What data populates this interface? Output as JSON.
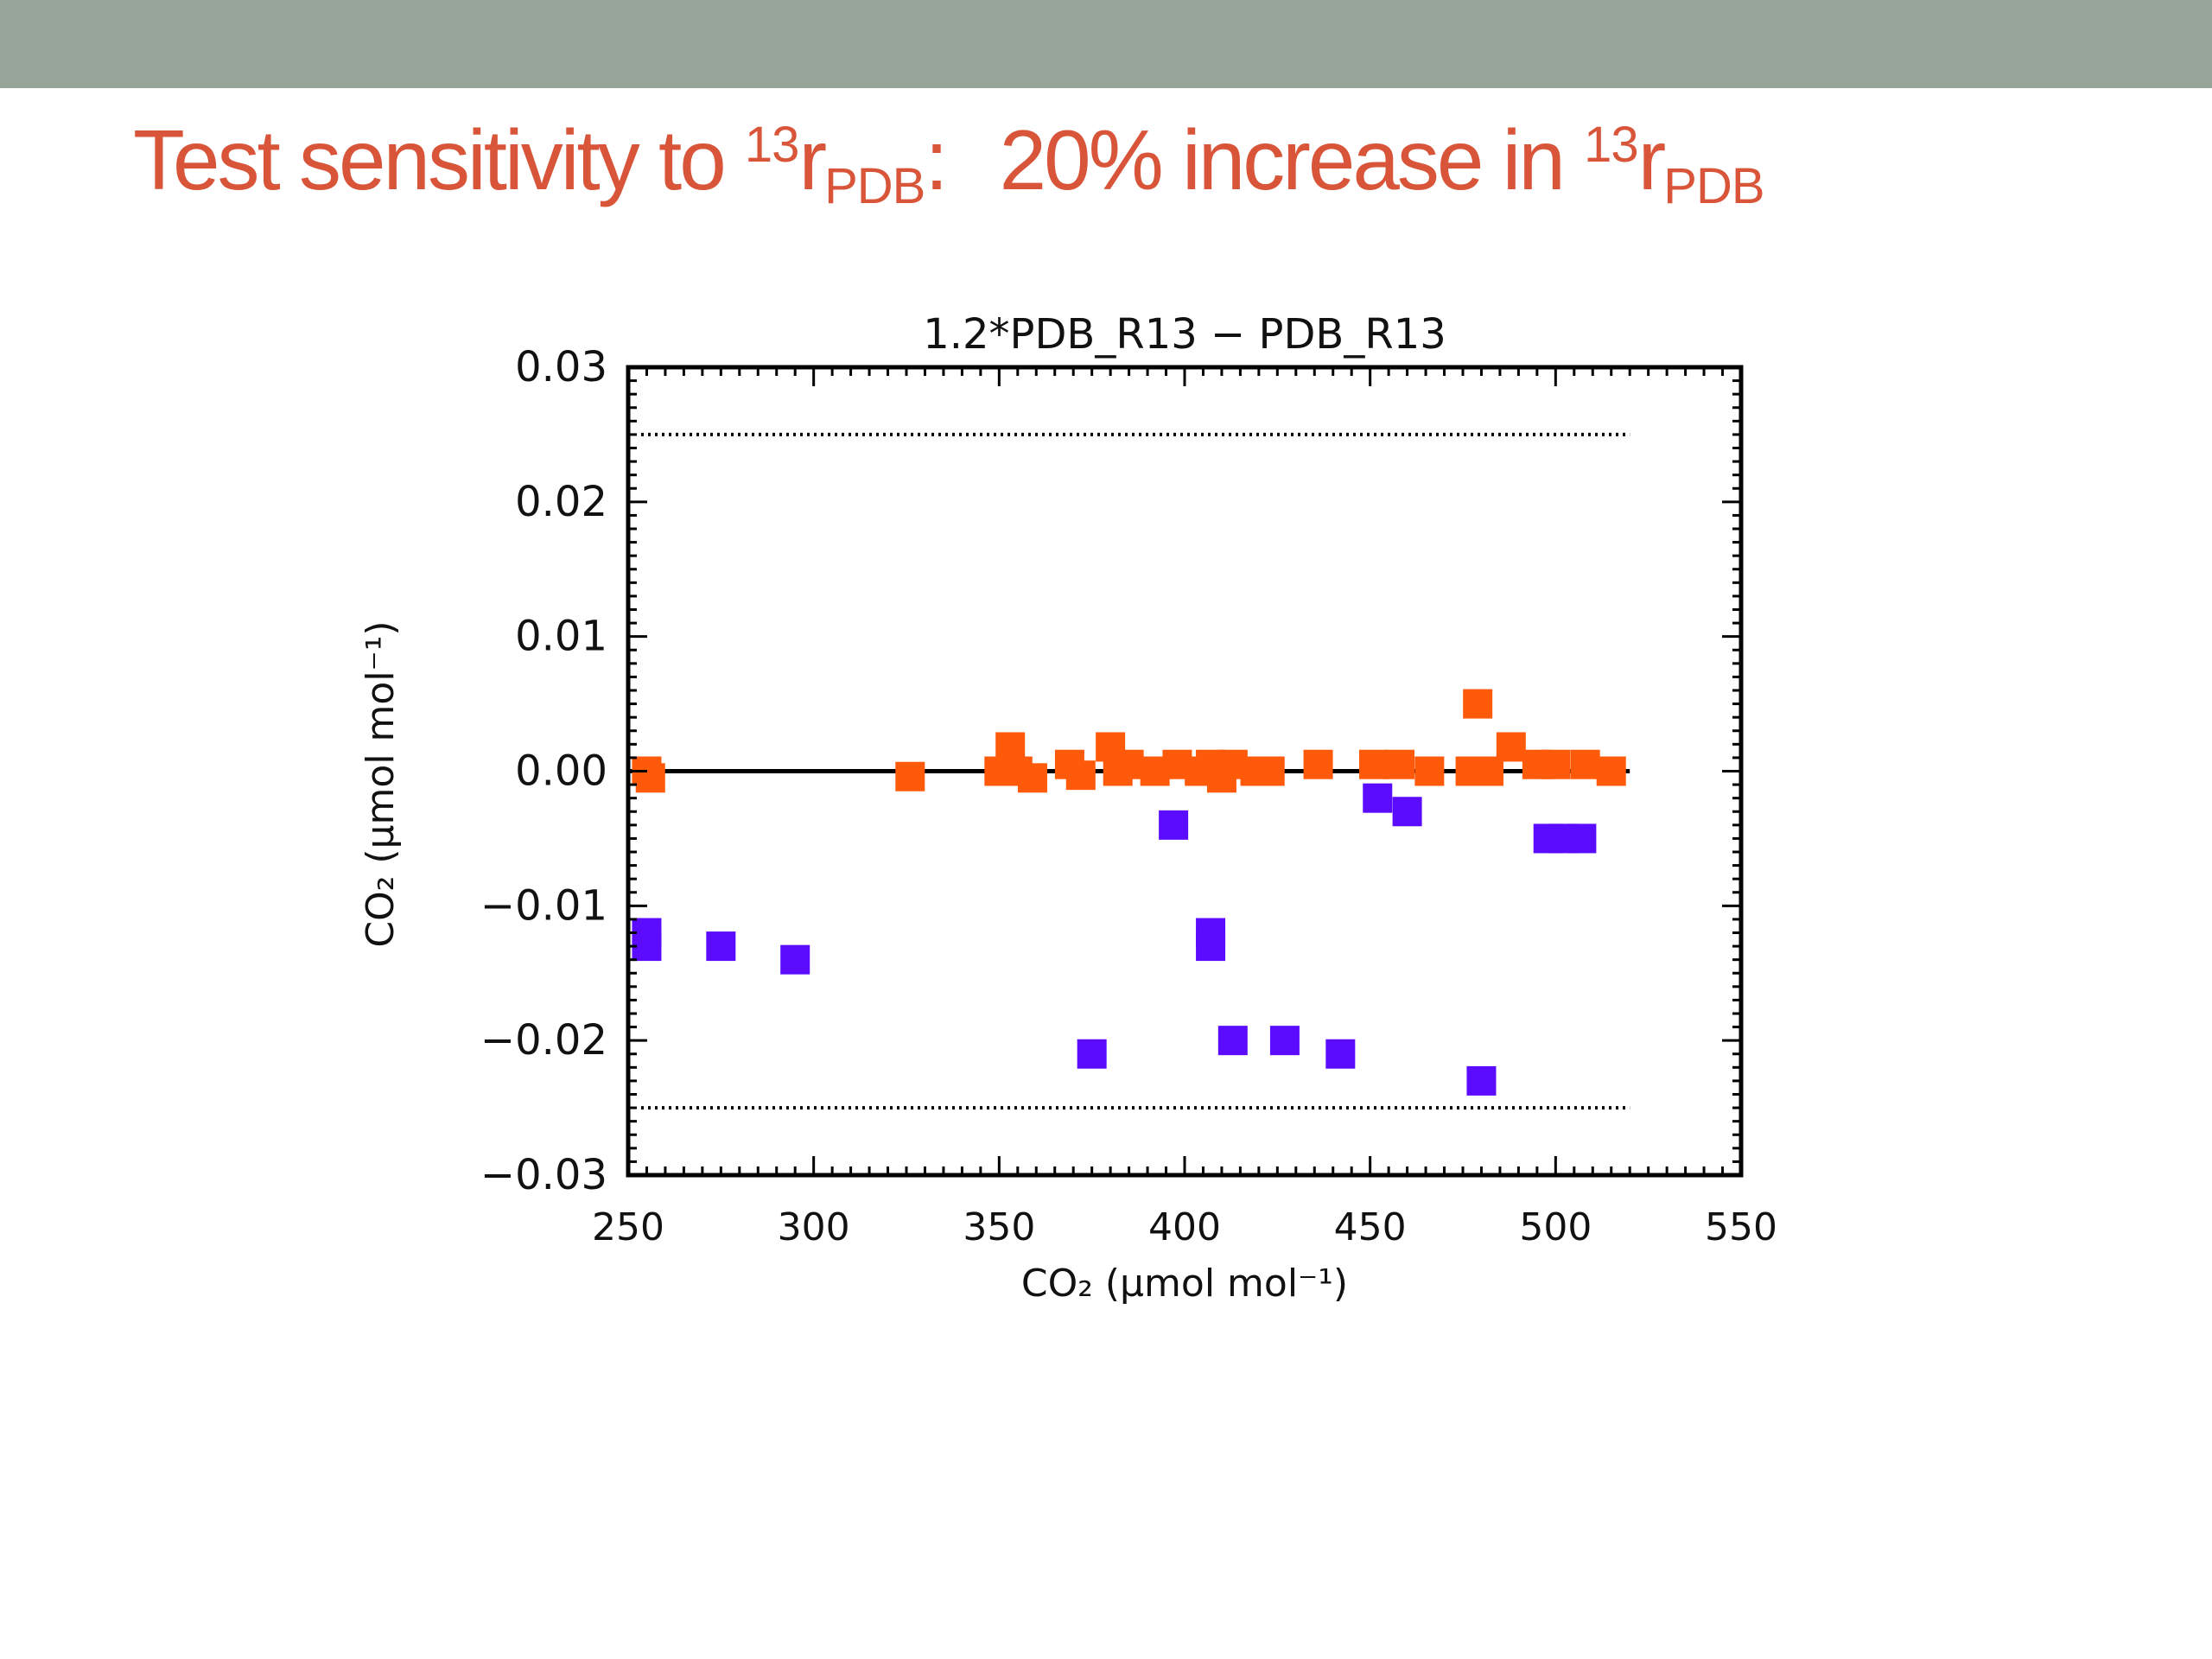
{
  "slide": {
    "title_part1": "Test sensitivity to ",
    "title_sup1": "13",
    "title_r1": "r",
    "title_sub1": "PDB",
    "title_colon": ":",
    "title_part2": "20% increase in ",
    "title_sup2": "13",
    "title_r2": "r",
    "title_sub2": "PDB",
    "title_color": "#d9553a",
    "bar_color": "#96a49a"
  },
  "chart_data": {
    "type": "scatter",
    "title": "1.2*PDB_R13 − PDB_R13",
    "xlabel": "CO₂ (μmol mol⁻¹)",
    "ylabel": "CO₂ (μmol mol⁻¹)",
    "xlim": [
      250,
      550
    ],
    "ylim": [
      -0.03,
      0.03
    ],
    "x_ticks": [
      "250",
      "300",
      "350",
      "400",
      "450",
      "500",
      "550"
    ],
    "y_ticks": [
      "−0.03",
      "−0.02",
      "−0.01",
      "0.00",
      "0.01",
      "0.02",
      "0.03"
    ],
    "reference_lines": [
      {
        "y": 0.0,
        "style": "solid"
      },
      {
        "y": 0.025,
        "style": "dotted"
      },
      {
        "y": -0.025,
        "style": "dotted"
      }
    ],
    "grid": false,
    "legend": "none",
    "series": [
      {
        "color": "#ff5a0a",
        "marker": "square",
        "x": [
          255,
          256,
          326,
          350,
          355,
          353,
          359,
          369,
          372,
          380,
          382,
          385,
          392,
          398,
          404,
          407,
          410,
          413,
          419,
          423,
          436,
          451,
          458,
          466,
          477,
          479,
          482,
          488,
          495,
          500,
          508,
          515
        ],
        "y": [
          0.0,
          -0.0005,
          -0.0004,
          0.0,
          0.0,
          0.0018,
          -0.0005,
          0.0005,
          -0.0003,
          0.0018,
          0.0,
          0.0005,
          0.0,
          0.0005,
          0.0,
          0.0005,
          -0.0005,
          0.0005,
          0.0,
          0.0,
          0.0005,
          0.0005,
          0.0005,
          0.0,
          0.0,
          0.005,
          0.0,
          0.0018,
          0.0005,
          0.0005,
          0.0005,
          0.0
        ]
      },
      {
        "color": "#5b0cff",
        "marker": "square",
        "x": [
          255,
          255,
          275,
          295,
          375,
          397,
          407,
          407,
          413,
          427,
          442,
          452,
          460,
          480,
          498,
          502,
          507
        ],
        "y": [
          -0.012,
          -0.013,
          -0.013,
          -0.014,
          -0.021,
          -0.004,
          -0.012,
          -0.013,
          -0.02,
          -0.02,
          -0.021,
          -0.002,
          -0.003,
          -0.023,
          -0.005,
          -0.005,
          -0.005
        ]
      }
    ]
  }
}
